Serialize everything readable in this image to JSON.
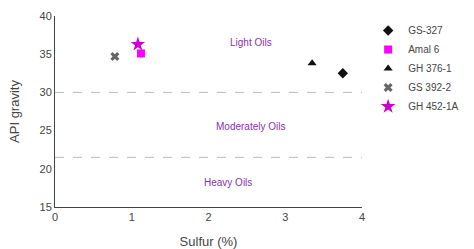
{
  "chart_data": {
    "type": "scatter",
    "xlabel": "Sulfur (%)",
    "ylabel": "API gravity",
    "xlim": [
      0,
      4
    ],
    "ylim": [
      15,
      40
    ],
    "xticks": [
      0,
      1,
      2,
      3,
      4
    ],
    "yticks": [
      15,
      20,
      25,
      30,
      35,
      40
    ],
    "grid": false,
    "legend": "right",
    "hlines": [
      {
        "y": 30,
        "color": "#bbbbbb",
        "line_style": "dashed"
      },
      {
        "y": 21.5,
        "color": "#bbbbbb",
        "line_style": "dashed"
      }
    ],
    "annotations": [
      {
        "text": "Light Oils",
        "x": 2.55,
        "y": 36.5,
        "color": "#8833aa"
      },
      {
        "text": "Moderately Oils",
        "x": 2.55,
        "y": 25.5,
        "color": "#8833aa"
      },
      {
        "text": "Heavy Oils",
        "x": 2.25,
        "y": 18.2,
        "color": "#8833aa"
      }
    ],
    "series": [
      {
        "name": "GS-327",
        "x": [
          3.75
        ],
        "y": [
          32.5
        ],
        "color": "#111111",
        "marker": "diamond"
      },
      {
        "name": "Amal 6",
        "x": [
          1.12
        ],
        "y": [
          35.1
        ],
        "color": "#ff00ff",
        "marker": "square"
      },
      {
        "name": "GH 376-1",
        "x": [
          3.35
        ],
        "y": [
          33.8
        ],
        "color": "#111111",
        "marker": "triangle-up"
      },
      {
        "name": "GS 392-2",
        "x": [
          0.78
        ],
        "y": [
          34.7
        ],
        "color": "#666666",
        "marker": "x"
      },
      {
        "name": "GH 452-1A",
        "x": [
          1.08
        ],
        "y": [
          36.3
        ],
        "color": "#cc00cc",
        "marker": "star"
      }
    ]
  }
}
